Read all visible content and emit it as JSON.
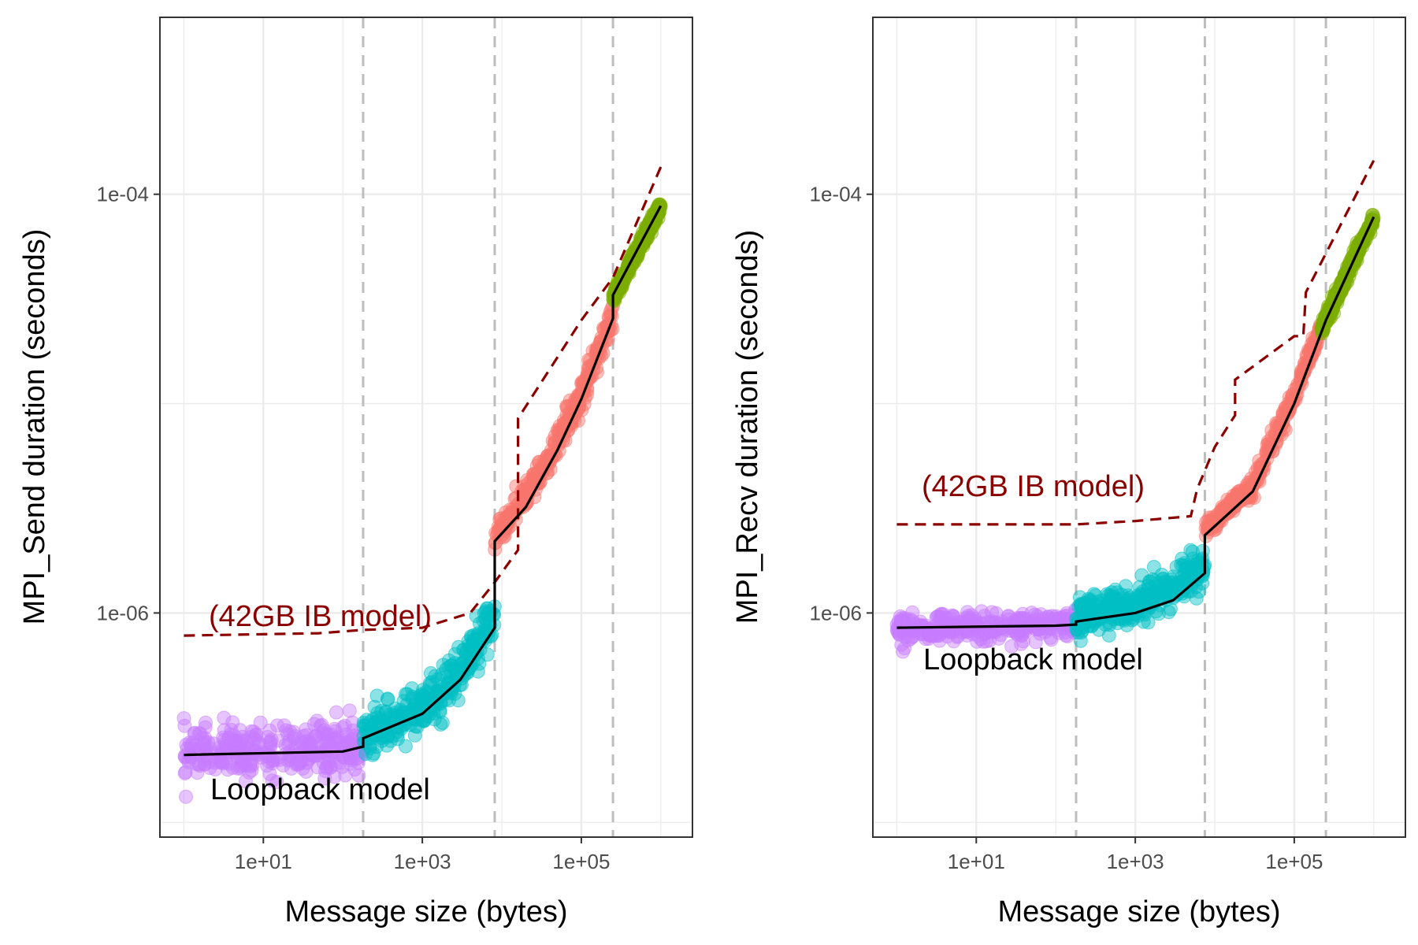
{
  "colors": {
    "small": "#C77CFF",
    "medium": "#00BFC4",
    "large": "#F8766D",
    "huge": "#7CAE00",
    "model_line": "#000000",
    "ib_model": "#8B0000",
    "breakpoint": "#bdbdbd",
    "grid": "#ebebeb",
    "panel_border": "#333333"
  },
  "chart_data": [
    {
      "type": "scatter",
      "title": "",
      "xlabel": "Message size (bytes)",
      "ylabel": "MPI_Send duration (seconds)",
      "x_scale": "log10",
      "y_scale": "log10",
      "xlim": [
        0.5,
        2500000
      ],
      "ylim": [
        8.5e-08,
        0.0007
      ],
      "x_ticks": [
        10,
        1000,
        100000
      ],
      "x_tick_labels": [
        "1e+01",
        "1e+03",
        "1e+05"
      ],
      "y_ticks": [
        1e-06,
        0.0001
      ],
      "y_tick_labels": [
        "1e-06",
        "1e-04"
      ],
      "grid": true,
      "breakpoints": [
        180,
        8133,
        250000
      ],
      "series": [
        {
          "id": "small",
          "color_key": "small",
          "x_range": [
            1,
            180
          ],
          "center": [
            [
              1,
              2.15e-07
            ],
            [
              180,
              2.3e-07
            ]
          ],
          "spread": 0.11
        },
        {
          "id": "medium",
          "color_key": "medium",
          "x_range": [
            180,
            8133
          ],
          "center": [
            [
              180,
              2.55e-07
            ],
            [
              1000,
              3.4e-07
            ],
            [
              3000,
              5.3e-07
            ],
            [
              8133,
              1e-06
            ]
          ],
          "spread": 0.1
        },
        {
          "id": "large",
          "color_key": "large",
          "x_range": [
            8133,
            250000
          ],
          "center": [
            [
              8133,
              2.3e-06
            ],
            [
              30000,
              4.5e-06
            ],
            [
              100000,
              1.1e-05
            ],
            [
              250000,
              2.7e-05
            ]
          ],
          "spread": 0.06
        },
        {
          "id": "huge",
          "color_key": "huge",
          "x_range": [
            250000,
            1000000
          ],
          "center": [
            [
              250000,
              3.2e-05
            ],
            [
              1000000,
              8.8e-05
            ]
          ],
          "spread": 0.03
        }
      ],
      "model_line": {
        "points": [
          [
            1,
            2.1e-07
          ],
          [
            100,
            2.18e-07
          ],
          [
            180,
            2.3e-07
          ],
          [
            180,
            2.52e-07
          ],
          [
            1000,
            3.3e-07
          ],
          [
            3000,
            4.8e-07
          ],
          [
            8133,
            8.5e-07
          ],
          [
            8133,
            2.2e-06
          ],
          [
            20000,
            3.2e-06
          ],
          [
            50000,
            6e-06
          ],
          [
            100000,
            1.05e-05
          ],
          [
            250000,
            2.55e-05
          ],
          [
            250000,
            3.3e-05
          ],
          [
            1000000,
            8.8e-05
          ]
        ]
      },
      "ib_model": {
        "points": [
          [
            1,
            7.8e-07
          ],
          [
            50,
            8e-07
          ],
          [
            180,
            8.3e-07
          ],
          [
            1000,
            8.5e-07
          ],
          [
            4000,
            1e-06
          ],
          [
            8133,
            1.4e-06
          ],
          [
            16000,
            2e-06
          ],
          [
            16000,
            8.5e-06
          ],
          [
            100000,
            2.5e-05
          ],
          [
            250000,
            4e-05
          ],
          [
            1000000,
            0.000135
          ]
        ]
      },
      "annotations": [
        {
          "text": "(42GB IB model)",
          "color_key": "ib_model"
        },
        {
          "text": "Loopback model",
          "color_key": "model_line"
        }
      ]
    },
    {
      "type": "scatter",
      "title": "",
      "xlabel": "Message size (bytes)",
      "ylabel": "MPI_Recv duration (seconds)",
      "x_scale": "log10",
      "y_scale": "log10",
      "xlim": [
        0.5,
        2500000
      ],
      "ylim": [
        8.5e-08,
        0.0007
      ],
      "x_ticks": [
        10,
        1000,
        100000
      ],
      "x_tick_labels": [
        "1e+01",
        "1e+03",
        "1e+05"
      ],
      "y_ticks": [
        1e-06,
        0.0001
      ],
      "y_tick_labels": [
        "1e-06",
        "1e-04"
      ],
      "grid": true,
      "breakpoints": [
        180,
        7500,
        250000
      ],
      "series": [
        {
          "id": "small",
          "color_key": "small",
          "x_range": [
            1,
            180
          ],
          "center": [
            [
              1,
              8.4e-07
            ],
            [
              180,
              8.8e-07
            ]
          ],
          "spread": 0.06
        },
        {
          "id": "medium",
          "color_key": "medium",
          "x_range": [
            180,
            7500
          ],
          "center": [
            [
              180,
              9.6e-07
            ],
            [
              1000,
              1.1e-06
            ],
            [
              3000,
              1.35e-06
            ],
            [
              7500,
              1.6e-06
            ]
          ],
          "spread": 0.09
        },
        {
          "id": "large",
          "color_key": "large",
          "x_range": [
            7500,
            220000
          ],
          "center": [
            [
              7500,
              2.5e-06
            ],
            [
              30000,
              4e-06
            ],
            [
              100000,
              1.1e-05
            ],
            [
              220000,
              2.3e-05
            ]
          ],
          "spread": 0.04
        },
        {
          "id": "huge",
          "color_key": "huge",
          "x_range": [
            220000,
            1000000
          ],
          "center": [
            [
              220000,
              2.3e-05
            ],
            [
              1000000,
              7.8e-05
            ]
          ],
          "spread": 0.03
        }
      ],
      "model_line": {
        "points": [
          [
            1,
            8.5e-07
          ],
          [
            100,
            8.7e-07
          ],
          [
            180,
            8.8e-07
          ],
          [
            180,
            9.1e-07
          ],
          [
            1000,
            1e-06
          ],
          [
            3000,
            1.15e-06
          ],
          [
            7500,
            1.55e-06
          ],
          [
            7500,
            2.35e-06
          ],
          [
            30000,
            3.8e-06
          ],
          [
            100000,
            1e-05
          ],
          [
            250000,
            2.5e-05
          ],
          [
            1000000,
            7.8e-05
          ]
        ]
      },
      "ib_model": {
        "points": [
          [
            1,
            2.65e-06
          ],
          [
            180,
            2.65e-06
          ],
          [
            1000,
            2.75e-06
          ],
          [
            5000,
            2.9e-06
          ],
          [
            6000,
            3.9e-06
          ],
          [
            10000,
            6.2e-06
          ],
          [
            18000,
            8.8e-06
          ],
          [
            18000,
            1.3e-05
          ],
          [
            100000,
            2.1e-05
          ],
          [
            130000,
            2.1e-05
          ],
          [
            140000,
            3.4e-05
          ],
          [
            1000000,
            0.000145
          ]
        ]
      },
      "annotations": [
        {
          "text": "(42GB IB model)",
          "color_key": "ib_model"
        },
        {
          "text": "Loopback model",
          "color_key": "model_line"
        }
      ]
    }
  ]
}
